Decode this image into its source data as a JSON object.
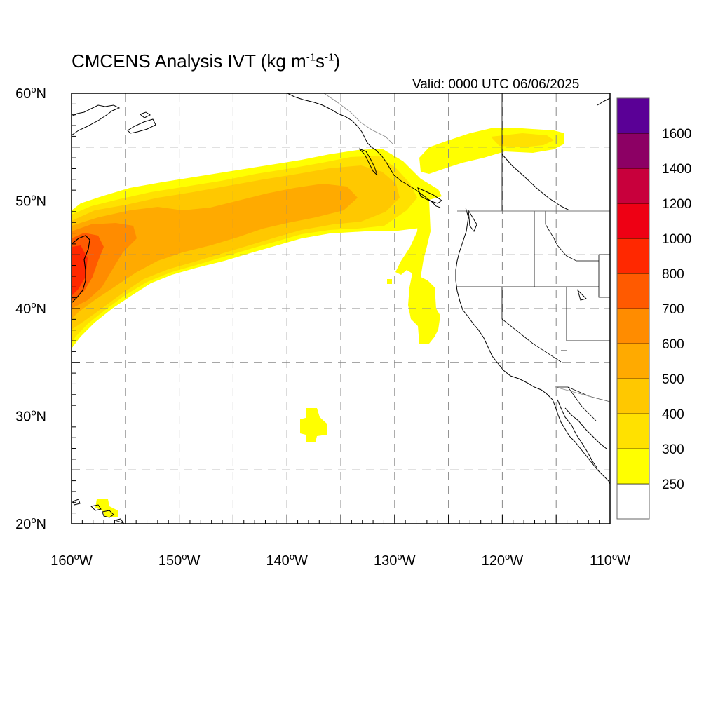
{
  "title": {
    "main": "CMCENS Analysis IVT (kg m",
    "sup1": "-1",
    "mid": "s",
    "sup2": "-1",
    "end": ")"
  },
  "valid_label": "Valid: 0000 UTC 06/06/2025",
  "map": {
    "lon_range": [
      -160,
      -110
    ],
    "lat_range": [
      20,
      60
    ],
    "gridlines": "dashed every 5 degrees",
    "lat_ticks": [
      {
        "value": 60,
        "label": "60"
      },
      {
        "value": 50,
        "label": "50"
      },
      {
        "value": 40,
        "label": "40"
      },
      {
        "value": 30,
        "label": "30"
      },
      {
        "value": 20,
        "label": "20"
      }
    ],
    "lat_suffix": "N",
    "lon_ticks": [
      {
        "value": -160,
        "label": "160"
      },
      {
        "value": -150,
        "label": "150"
      },
      {
        "value": -140,
        "label": "140"
      },
      {
        "value": -130,
        "label": "130"
      },
      {
        "value": -120,
        "label": "120"
      },
      {
        "value": -110,
        "label": "110"
      }
    ],
    "lon_suffix": "W"
  },
  "colorbar": {
    "colors": [
      "#ffffff",
      "#ffff00",
      "#ffe100",
      "#ffc800",
      "#ffaa00",
      "#ff8c00",
      "#ff5a00",
      "#ff2800",
      "#ee0014",
      "#c8003c",
      "#8c0064",
      "#5a0096"
    ],
    "labels": [
      "250",
      "300",
      "400",
      "500",
      "600",
      "700",
      "800",
      "1000",
      "1200",
      "1400",
      "1600"
    ]
  },
  "ivt_field": {
    "units": "kg m-1 s-1",
    "features": [
      {
        "region": "plume NE Pacific",
        "lon": [
          -160,
          -125
        ],
        "lat": [
          42,
          55
        ],
        "peak": 800
      },
      {
        "region": "coastal filament",
        "lon": [
          -128,
          -125
        ],
        "lat": [
          37,
          50
        ],
        "peak": 300
      },
      {
        "region": "inland BC",
        "lon": [
          -125,
          -114
        ],
        "lat": [
          52,
          57
        ],
        "peak": 300
      },
      {
        "region": "subtropical blob",
        "lon": [
          -139,
          -137
        ],
        "lat": [
          28,
          31
        ],
        "peak": 300
      },
      {
        "region": "Hawaii blob",
        "lon": [
          -157.5,
          -156
        ],
        "lat": [
          21,
          22.5
        ],
        "peak": 300
      }
    ]
  },
  "colors": {
    "coast": "#000000",
    "gridline": "#888888",
    "frame": "#000000"
  }
}
